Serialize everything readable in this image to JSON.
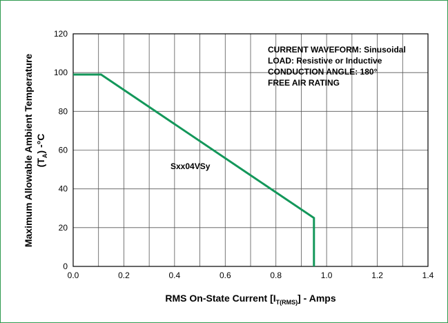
{
  "chart_data": {
    "type": "line",
    "xlabel": "RMS On-State Current [I",
    "xlabel_subscript": "T(RMS)",
    "xlabel_suffix": "] - Amps",
    "ylabel_line1": "Maximum Allowable Ambient Temperature",
    "ylabel_line2_prefix": "(T",
    "ylabel_line2_subscript": "A",
    "ylabel_line2_suffix": ") -°C",
    "xlim": [
      0.0,
      1.4
    ],
    "ylim": [
      0,
      120
    ],
    "x_ticks": [
      0.0,
      0.2,
      0.4,
      0.6,
      0.8,
      1.0,
      1.2,
      1.4
    ],
    "x_tick_labels": [
      "0.0",
      "0.2",
      "0.4",
      "0.6",
      "0.8",
      "1.0",
      "1.2",
      "1.4"
    ],
    "y_ticks": [
      0,
      20,
      40,
      60,
      80,
      100,
      120
    ],
    "y_tick_labels": [
      "0",
      "20",
      "40",
      "60",
      "80",
      "100",
      "120"
    ],
    "grid": true,
    "series": [
      {
        "name": "Sxx04VSy",
        "color": "#13975a",
        "x": [
          0.0,
          0.11,
          0.95,
          0.95
        ],
        "y": [
          99,
          99,
          25,
          0
        ]
      }
    ],
    "annotations": {
      "series_label": "Sxx04VSy",
      "conditions": [
        "CURRENT WAVEFORM: Sinusoidal",
        "LOAD: Resistive or Inductive",
        "CONDUCTION ANGLE: 180°",
        "FREE AIR RATING"
      ]
    }
  },
  "colors": {
    "frame": "#2e9a4f",
    "grid": "#555555",
    "series": "#13975a"
  }
}
